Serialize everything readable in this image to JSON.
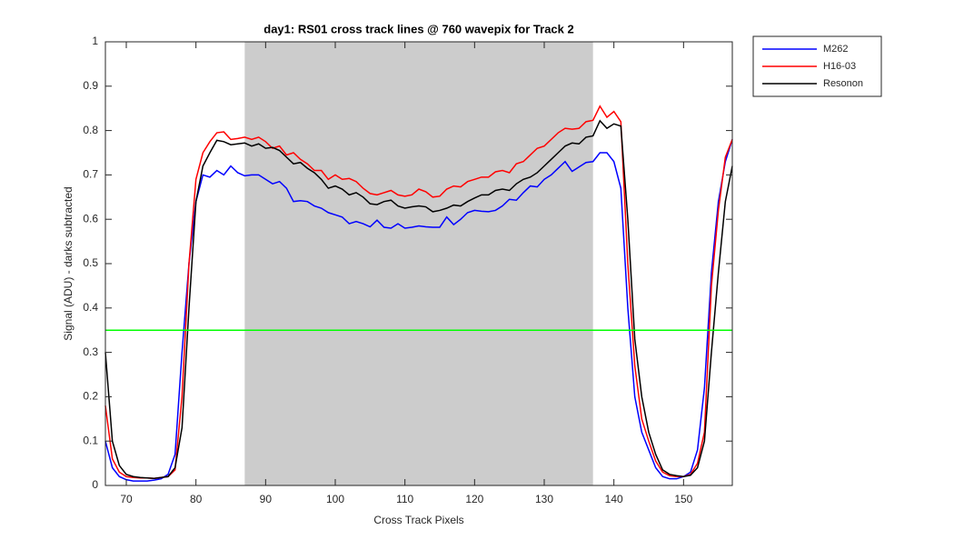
{
  "chart_data": {
    "type": "line",
    "title": "day1: RS01  cross track lines @ 760 wavepix for Track 2",
    "x_label": "Cross Track Pixels",
    "y_label": "Signal (ADU) - darks subtracted",
    "x": [
      67,
      68,
      69,
      70,
      71,
      72,
      73,
      74,
      75,
      76,
      77,
      78,
      79,
      80,
      81,
      82,
      83,
      84,
      85,
      86,
      87,
      88,
      89,
      90,
      91,
      92,
      93,
      94,
      95,
      96,
      97,
      98,
      99,
      100,
      101,
      102,
      103,
      104,
      105,
      106,
      107,
      108,
      109,
      110,
      111,
      112,
      113,
      114,
      115,
      116,
      117,
      118,
      119,
      120,
      121,
      122,
      123,
      124,
      125,
      126,
      127,
      128,
      129,
      130,
      131,
      132,
      133,
      134,
      135,
      136,
      137,
      138,
      139,
      140,
      141,
      142,
      143,
      144,
      145,
      146,
      147,
      148,
      149,
      150,
      151,
      152,
      153,
      154,
      155,
      156,
      157
    ],
    "series": [
      {
        "name": "M262",
        "color": "#0000ff",
        "values": [
          0.1,
          0.04,
          0.02,
          0.013,
          0.01,
          0.01,
          0.01,
          0.012,
          0.015,
          0.025,
          0.07,
          0.3,
          0.5,
          0.64,
          0.7,
          0.695,
          0.71,
          0.7,
          0.72,
          0.705,
          0.698,
          0.7,
          0.7,
          0.69,
          0.68,
          0.685,
          0.67,
          0.64,
          0.642,
          0.64,
          0.63,
          0.625,
          0.615,
          0.61,
          0.605,
          0.59,
          0.595,
          0.59,
          0.583,
          0.598,
          0.582,
          0.58,
          0.59,
          0.58,
          0.582,
          0.585,
          0.583,
          0.582,
          0.582,
          0.605,
          0.588,
          0.6,
          0.615,
          0.62,
          0.618,
          0.617,
          0.62,
          0.63,
          0.645,
          0.643,
          0.66,
          0.675,
          0.673,
          0.69,
          0.7,
          0.715,
          0.73,
          0.708,
          0.718,
          0.728,
          0.73,
          0.75,
          0.75,
          0.73,
          0.67,
          0.4,
          0.2,
          0.12,
          0.08,
          0.04,
          0.02,
          0.015,
          0.015,
          0.02,
          0.03,
          0.08,
          0.22,
          0.48,
          0.64,
          0.73,
          0.78
        ]
      },
      {
        "name": "H16-03",
        "color": "#ff0000",
        "values": [
          0.18,
          0.06,
          0.03,
          0.02,
          0.018,
          0.017,
          0.017,
          0.016,
          0.018,
          0.02,
          0.035,
          0.2,
          0.5,
          0.69,
          0.75,
          0.775,
          0.795,
          0.797,
          0.78,
          0.782,
          0.785,
          0.78,
          0.785,
          0.775,
          0.76,
          0.765,
          0.745,
          0.75,
          0.735,
          0.725,
          0.71,
          0.71,
          0.69,
          0.7,
          0.69,
          0.692,
          0.685,
          0.67,
          0.658,
          0.655,
          0.66,
          0.665,
          0.655,
          0.652,
          0.655,
          0.668,
          0.662,
          0.65,
          0.652,
          0.668,
          0.675,
          0.673,
          0.685,
          0.69,
          0.695,
          0.695,
          0.707,
          0.71,
          0.705,
          0.725,
          0.73,
          0.745,
          0.76,
          0.765,
          0.78,
          0.795,
          0.805,
          0.803,
          0.805,
          0.82,
          0.823,
          0.855,
          0.83,
          0.843,
          0.82,
          0.5,
          0.27,
          0.15,
          0.1,
          0.055,
          0.03,
          0.022,
          0.02,
          0.02,
          0.025,
          0.05,
          0.12,
          0.45,
          0.62,
          0.74,
          0.78
        ]
      },
      {
        "name": "Resonon",
        "color": "#000000",
        "values": [
          0.3,
          0.1,
          0.045,
          0.025,
          0.02,
          0.018,
          0.017,
          0.016,
          0.018,
          0.02,
          0.04,
          0.13,
          0.4,
          0.64,
          0.72,
          0.75,
          0.778,
          0.775,
          0.768,
          0.77,
          0.772,
          0.765,
          0.77,
          0.76,
          0.762,
          0.755,
          0.74,
          0.725,
          0.728,
          0.715,
          0.705,
          0.69,
          0.67,
          0.675,
          0.668,
          0.655,
          0.66,
          0.65,
          0.635,
          0.633,
          0.64,
          0.643,
          0.63,
          0.625,
          0.628,
          0.63,
          0.628,
          0.617,
          0.62,
          0.625,
          0.632,
          0.63,
          0.64,
          0.648,
          0.655,
          0.655,
          0.665,
          0.668,
          0.665,
          0.68,
          0.69,
          0.695,
          0.705,
          0.72,
          0.735,
          0.75,
          0.765,
          0.772,
          0.77,
          0.785,
          0.788,
          0.822,
          0.805,
          0.815,
          0.81,
          0.6,
          0.33,
          0.2,
          0.12,
          0.07,
          0.035,
          0.025,
          0.022,
          0.02,
          0.023,
          0.04,
          0.1,
          0.3,
          0.48,
          0.64,
          0.72
        ]
      }
    ],
    "xlim": [
      67,
      157
    ],
    "xticks": [
      70,
      80,
      90,
      100,
      110,
      120,
      130,
      140,
      150
    ],
    "ylim": [
      0,
      1
    ],
    "yticks": [
      0,
      0.1,
      0.2,
      0.3,
      0.4,
      0.5,
      0.6,
      0.7,
      0.8,
      0.9,
      1
    ],
    "shaded_region": {
      "x": [
        87,
        137
      ],
      "color": "#cccccc"
    },
    "reference_line": {
      "y": 0.35,
      "color": "#00ff00"
    },
    "legend": "outside-top-right",
    "grid": false
  }
}
